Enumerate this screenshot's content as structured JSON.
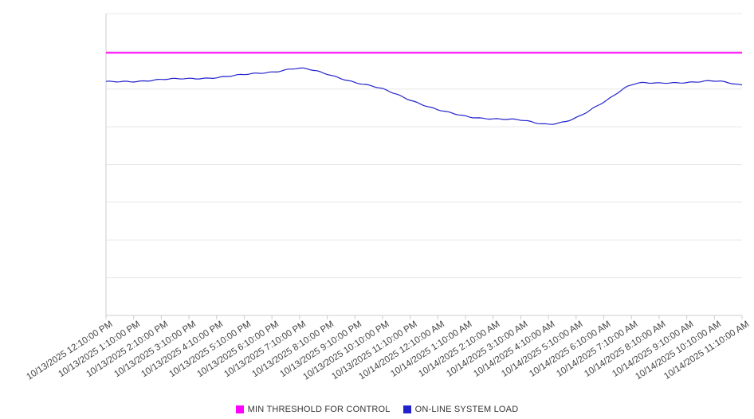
{
  "chart_data": {
    "type": "line",
    "title": "",
    "xlabel": "",
    "ylabel": "",
    "x": [
      "10/13/2025 12:10:00 PM",
      "10/13/2025 1:10:00 PM",
      "10/13/2025 2:10:00 PM",
      "10/13/2025 3:10:00 PM",
      "10/13/2025 4:10:00 PM",
      "10/13/2025 5:10:00 PM",
      "10/13/2025 6:10:00 PM",
      "10/13/2025 7:10:00 PM",
      "10/13/2025 8:10:00 PM",
      "10/13/2025 9:10:00 PM",
      "10/13/2025 10:10:00 PM",
      "10/13/2025 11:10:00 PM",
      "10/14/2025 12:10:00 AM",
      "10/14/2025 1:10:00 AM",
      "10/14/2025 2:10:00 AM",
      "10/14/2025 3:10:00 AM",
      "10/14/2025 4:10:00 AM",
      "10/14/2025 5:10:00 AM",
      "10/14/2025 6:10:00 AM",
      "10/14/2025 7:10:00 AM",
      "10/14/2025 8:10:00 AM",
      "10/14/2025 9:10:00 AM",
      "10/14/2025 10:10:00 AM",
      "10/14/2025 11:10:00 AM"
    ],
    "series": [
      {
        "name": "MIN THRESHOLD FOR CONTROL",
        "color": "#ff00ff",
        "values": [
          87,
          87,
          87,
          87,
          87,
          87,
          87,
          87,
          87,
          87,
          87,
          87,
          87,
          87,
          87,
          87,
          87,
          87,
          87,
          87,
          87,
          87,
          87,
          87
        ]
      },
      {
        "name": "ON-LINE SYSTEM LOAD",
        "color": "#2222cc",
        "values": [
          77.3,
          77.6,
          78.1,
          78.4,
          78.9,
          79.7,
          80.7,
          81.8,
          79.9,
          77.3,
          74.9,
          71.5,
          68.1,
          66.0,
          65.2,
          64.6,
          63.5,
          65.4,
          70.7,
          76.5,
          76.8,
          77.3,
          77.6,
          76.3
        ]
      }
    ],
    "ylim": [
      0,
      100
    ],
    "y_axis_tick_labels_visible": false,
    "y_gridline_divisions": 8,
    "grid": "horizontal",
    "legend_position": "bottom"
  }
}
